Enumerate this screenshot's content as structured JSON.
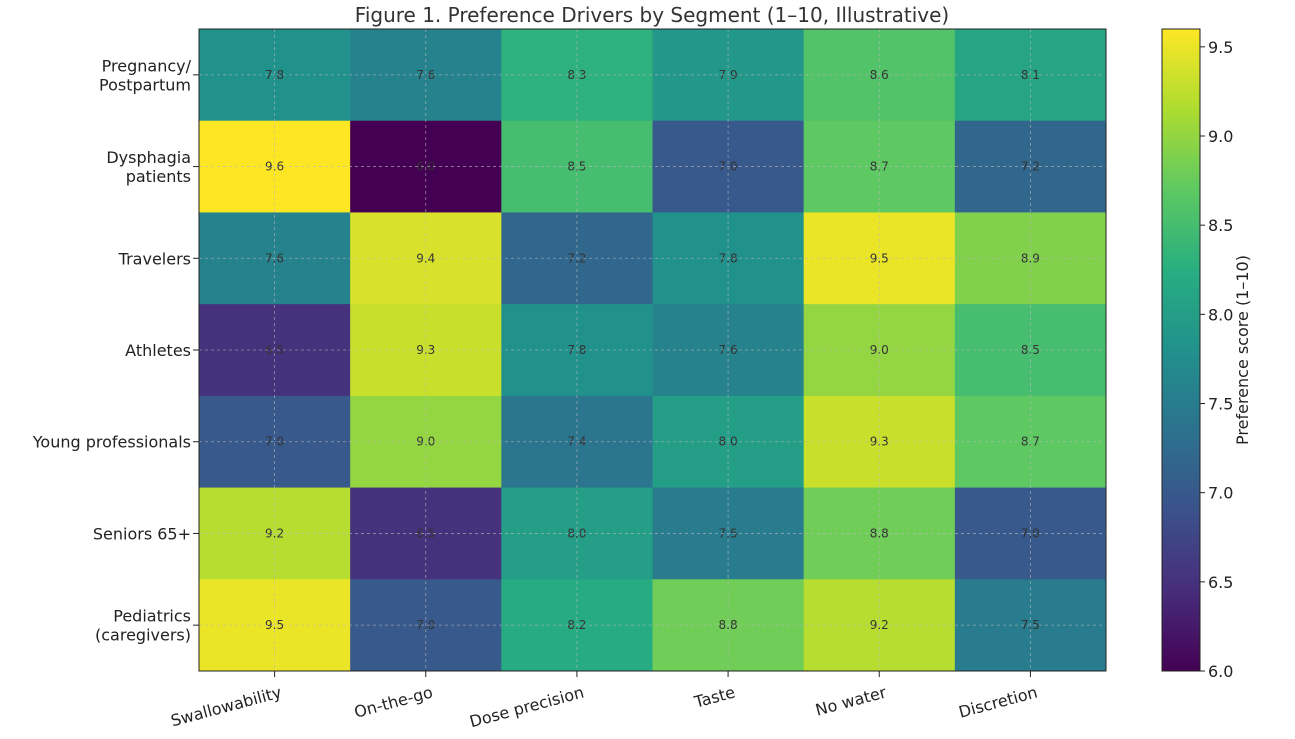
{
  "chart_data": {
    "type": "heatmap",
    "title": "Figure 1. Preference Drivers by Segment (1–10, Illustrative)",
    "rows": [
      "Pregnancy/\nPostpartum",
      "Dysphagia\npatients",
      "Travelers",
      "Athletes",
      "Young professionals",
      "Seniors 65+",
      "Pediatrics\n(caregivers)"
    ],
    "columns": [
      "Swallowability",
      "On-the-go",
      "Dose precision",
      "Taste",
      "No water",
      "Discretion"
    ],
    "values": [
      [
        7.8,
        7.6,
        8.3,
        7.9,
        8.6,
        8.1
      ],
      [
        9.6,
        6.0,
        8.5,
        7.0,
        8.7,
        7.2
      ],
      [
        7.6,
        9.4,
        7.2,
        7.8,
        9.5,
        8.9
      ],
      [
        6.5,
        9.3,
        7.8,
        7.6,
        9.0,
        8.5
      ],
      [
        7.0,
        9.0,
        7.4,
        8.0,
        9.3,
        8.7
      ],
      [
        9.2,
        6.5,
        8.0,
        7.5,
        8.8,
        7.0
      ],
      [
        9.5,
        7.0,
        8.2,
        8.8,
        9.2,
        7.5
      ]
    ],
    "value_labels": [
      [
        "7.8",
        "7.6",
        "8.3",
        "7.9",
        "8.6",
        "8.1"
      ],
      [
        "9.6",
        "6.0",
        "8.5",
        "7.0",
        "8.7",
        "7.2"
      ],
      [
        "7.6",
        "9.4",
        "7.2",
        "7.8",
        "9.5",
        "8.9"
      ],
      [
        "6.5",
        "9.3",
        "7.8",
        "7.6",
        "9.0",
        "8.5"
      ],
      [
        "7.0",
        "9.0",
        "7.4",
        "8.0",
        "9.3",
        "8.7"
      ],
      [
        "9.2",
        "6.5",
        "8.0",
        "7.5",
        "8.8",
        "7.0"
      ],
      [
        "9.5",
        "7.0",
        "8.2",
        "8.8",
        "9.2",
        "7.5"
      ]
    ],
    "colormap": "viridis",
    "color_range": [
      6.0,
      9.6
    ],
    "colorbar": {
      "label": "Preference score (1–10)",
      "ticks": [
        6.0,
        6.5,
        7.0,
        7.5,
        8.0,
        8.5,
        9.0,
        9.5
      ],
      "tick_labels": [
        "6.0",
        "6.5",
        "7.0",
        "7.5",
        "8.0",
        "8.5",
        "9.0",
        "9.5"
      ]
    },
    "grid": true
  }
}
